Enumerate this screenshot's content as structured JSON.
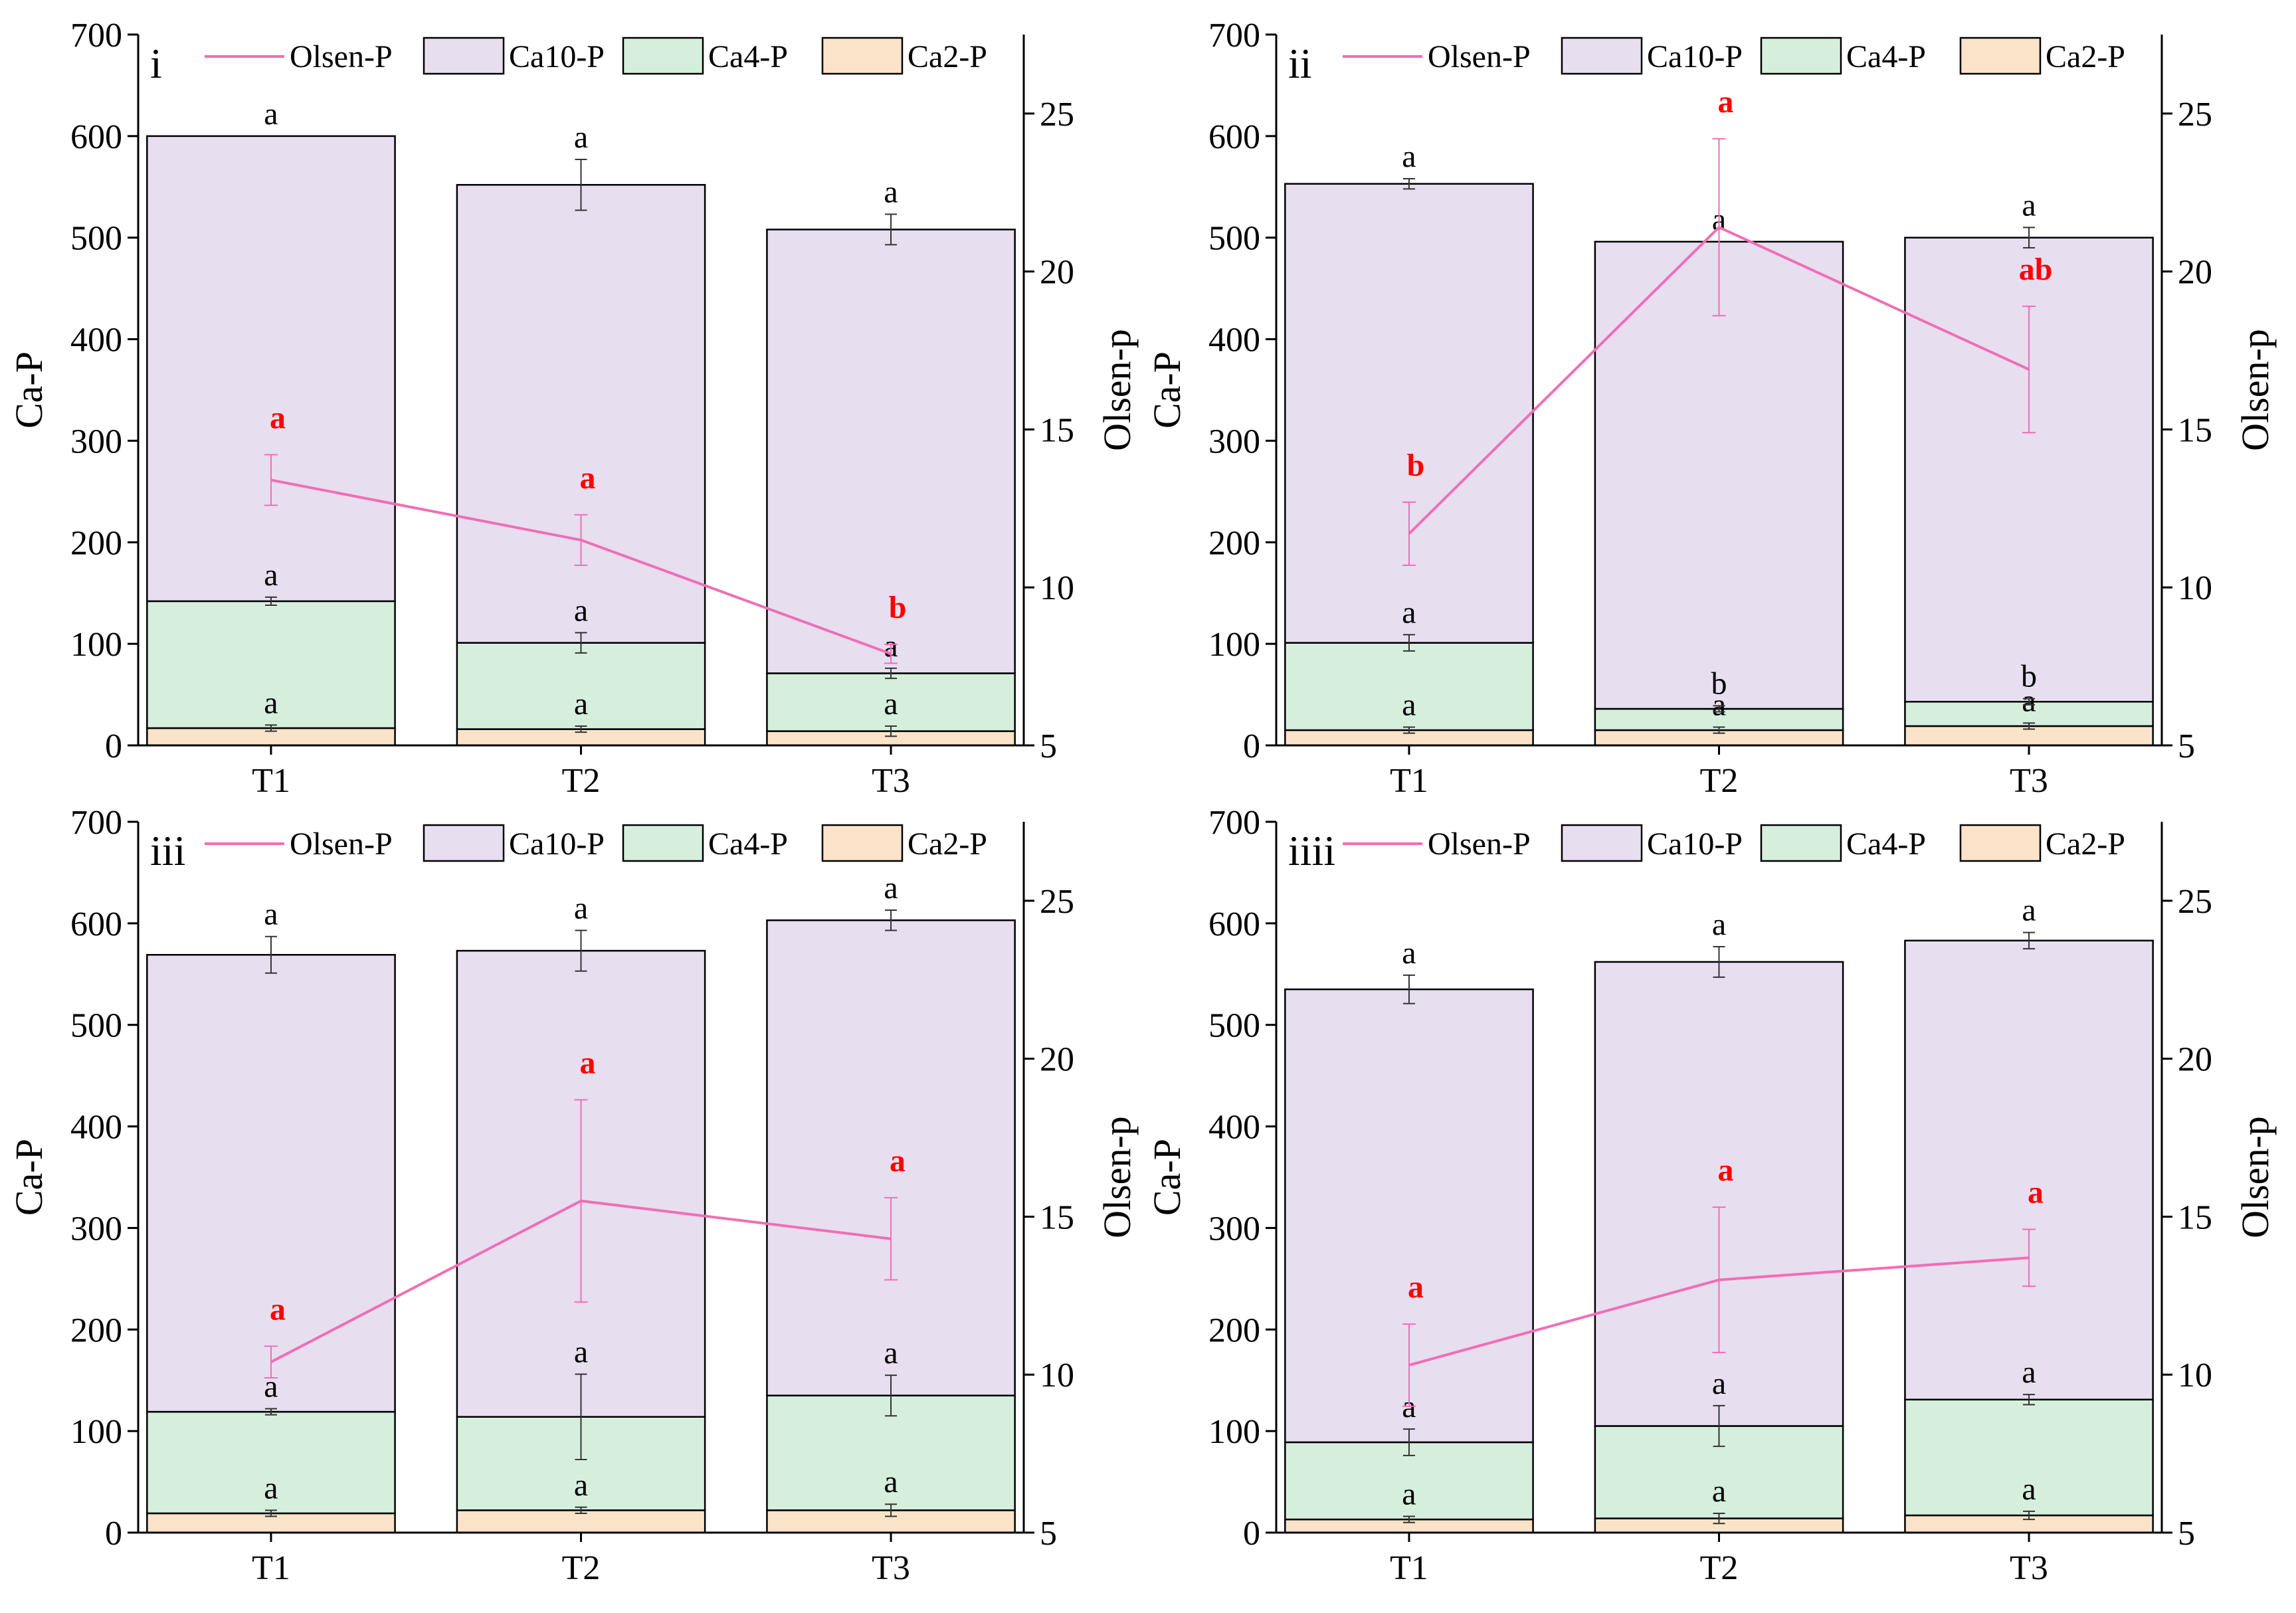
{
  "chart_data": [
    {
      "type": "bar",
      "panel": "i",
      "categories": [
        "T1",
        "T2",
        "T3"
      ],
      "series": [
        {
          "name": "Ca2-P",
          "values": [
            17,
            16,
            14
          ],
          "errors": [
            3,
            3,
            5
          ],
          "sig": [
            "a",
            "a",
            "a"
          ]
        },
        {
          "name": "Ca4-P",
          "values": [
            125,
            85,
            57
          ],
          "errors": [
            4,
            10,
            5
          ],
          "sig": [
            "a",
            "a",
            "a"
          ]
        },
        {
          "name": "Ca10-P",
          "values": [
            458,
            451,
            437
          ],
          "errors": [
            0,
            25,
            15
          ],
          "sig": [
            "a",
            "a",
            "a"
          ]
        },
        {
          "name": "Olsen-P",
          "axis": "right",
          "values": [
            13.4,
            11.5,
            7.9
          ],
          "errors": [
            0.8,
            0.8,
            0.3
          ],
          "sig": [
            "a",
            "a",
            "b"
          ]
        }
      ],
      "xlabel": "",
      "ylabel": "Ca-P",
      "y2label": "Olsen-p",
      "ylim": [
        0,
        700
      ],
      "y2lim": [
        5,
        27.5
      ],
      "yticks": [
        0,
        100,
        200,
        300,
        400,
        500,
        600,
        700
      ],
      "y2ticks": [
        5,
        10,
        15,
        20,
        25
      ]
    },
    {
      "type": "bar",
      "panel": "ii",
      "categories": [
        "T1",
        "T2",
        "T3"
      ],
      "series": [
        {
          "name": "Ca2-P",
          "values": [
            15,
            15,
            19
          ],
          "errors": [
            3,
            3,
            3
          ],
          "sig": [
            "a",
            "a",
            "a"
          ]
        },
        {
          "name": "Ca4-P",
          "values": [
            86,
            21,
            24
          ],
          "errors": [
            8,
            3,
            3
          ],
          "sig": [
            "a",
            "b",
            "b"
          ]
        },
        {
          "name": "Ca10-P",
          "values": [
            452,
            460,
            457
          ],
          "errors": [
            5,
            0,
            10
          ],
          "sig": [
            "a",
            "a",
            "a"
          ]
        },
        {
          "name": "Olsen-P",
          "axis": "right",
          "values": [
            11.7,
            21.4,
            16.9
          ],
          "errors": [
            1.0,
            2.8,
            2.0
          ],
          "sig": [
            "b",
            "a",
            "ab"
          ]
        }
      ],
      "xlabel": "",
      "ylabel": "Ca-P",
      "y2label": "Olsen-p",
      "ylim": [
        0,
        700
      ],
      "y2lim": [
        5,
        27.5
      ],
      "yticks": [
        0,
        100,
        200,
        300,
        400,
        500,
        600,
        700
      ],
      "y2ticks": [
        5,
        10,
        15,
        20,
        25
      ]
    },
    {
      "type": "bar",
      "panel": "iii",
      "categories": [
        "T1",
        "T2",
        "T3"
      ],
      "series": [
        {
          "name": "Ca2-P",
          "values": [
            19,
            22,
            22
          ],
          "errors": [
            3,
            3,
            6
          ],
          "sig": [
            "a",
            "a",
            "a"
          ]
        },
        {
          "name": "Ca4-P",
          "values": [
            100,
            92,
            113
          ],
          "errors": [
            3,
            42,
            20
          ],
          "sig": [
            "a",
            "a",
            "a"
          ]
        },
        {
          "name": "Ca10-P",
          "values": [
            450,
            459,
            468
          ],
          "errors": [
            18,
            20,
            10
          ],
          "sig": [
            "a",
            "a",
            "a"
          ]
        },
        {
          "name": "Olsen-P",
          "axis": "right",
          "values": [
            10.4,
            15.5,
            14.3
          ],
          "errors": [
            0.5,
            3.2,
            1.3
          ],
          "sig": [
            "a",
            "a",
            "a"
          ]
        }
      ],
      "xlabel": "",
      "ylabel": "Ca-P",
      "y2label": "Olsen-p",
      "ylim": [
        0,
        700
      ],
      "y2lim": [
        5,
        27.5
      ],
      "yticks": [
        0,
        100,
        200,
        300,
        400,
        500,
        600,
        700
      ],
      "y2ticks": [
        5,
        10,
        15,
        20,
        25
      ]
    },
    {
      "type": "bar",
      "panel": "iiii",
      "categories": [
        "T1",
        "T2",
        "T3"
      ],
      "series": [
        {
          "name": "Ca2-P",
          "values": [
            13,
            14,
            17
          ],
          "errors": [
            3,
            5,
            4
          ],
          "sig": [
            "a",
            "a",
            "a"
          ]
        },
        {
          "name": "Ca4-P",
          "values": [
            76,
            91,
            114
          ],
          "errors": [
            13,
            20,
            5
          ],
          "sig": [
            "a",
            "a",
            "a"
          ]
        },
        {
          "name": "Ca10-P",
          "values": [
            446,
            457,
            452
          ],
          "errors": [
            14,
            15,
            8
          ],
          "sig": [
            "a",
            "a",
            "a"
          ]
        },
        {
          "name": "Olsen-P",
          "axis": "right",
          "values": [
            10.3,
            13.0,
            13.7
          ],
          "errors": [
            1.3,
            2.3,
            0.9
          ],
          "sig": [
            "a",
            "a",
            "a"
          ]
        }
      ],
      "xlabel": "",
      "ylabel": "Ca-P",
      "y2label": "Olsen-p",
      "ylim": [
        0,
        700
      ],
      "y2lim": [
        5,
        27.5
      ],
      "yticks": [
        0,
        100,
        200,
        300,
        400,
        500,
        600,
        700
      ],
      "y2ticks": [
        5,
        10,
        15,
        20,
        25
      ]
    }
  ],
  "legend": [
    "Olsen-P",
    "Ca10-P",
    "Ca4-P",
    "Ca2-P"
  ],
  "colors": {
    "Ca2-P": "#fbe3c9",
    "Ca4-P": "#d5efdc",
    "Ca10-P": "#e7def0",
    "Olsen-P": "#f06eb4",
    "sig_left": "#000000",
    "sig_right": "#ff0000"
  }
}
